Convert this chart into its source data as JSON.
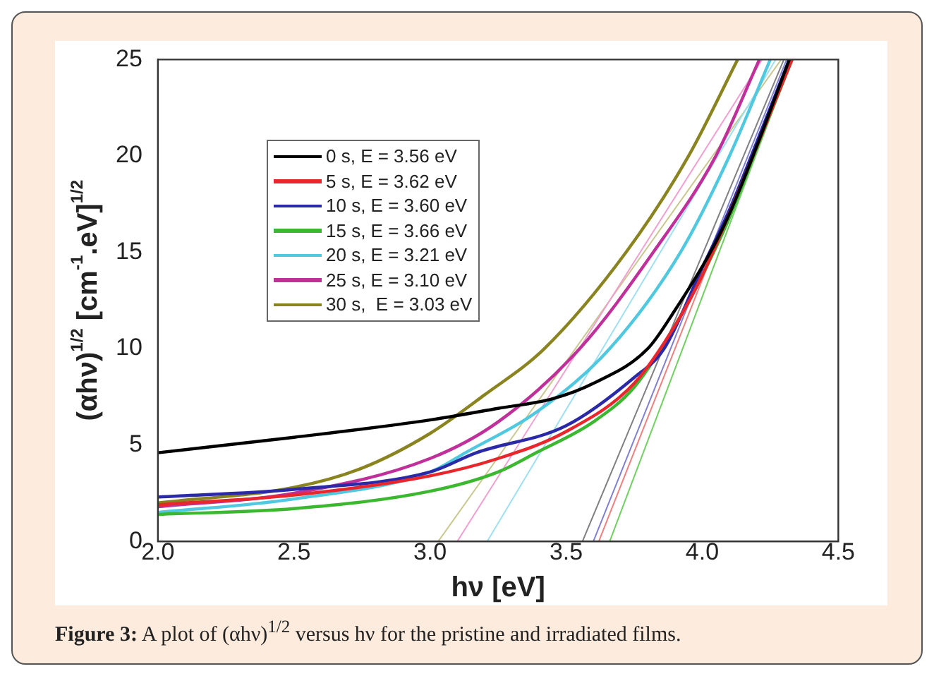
{
  "chart_data": {
    "type": "line",
    "xlabel": "hν [eV]",
    "ylabel": "(αhν)$^{1/2}$ [cm$^{-1}$.eV]$^{1/2}$",
    "xlim": [
      2.0,
      4.5
    ],
    "ylim": [
      0,
      25
    ],
    "xticks": [
      {
        "value": 2,
        "label": "2.0"
      },
      {
        "value": 2.5,
        "label": "2.5"
      },
      {
        "value": 3,
        "label": "3.0"
      },
      {
        "value": 3.5,
        "label": "3.5"
      },
      {
        "value": 4,
        "label": "4.0"
      },
      {
        "value": 4.5,
        "label": "4.5"
      }
    ],
    "yticks": [
      0,
      5,
      10,
      15,
      20,
      25
    ],
    "grid": false,
    "legend": "top left",
    "marker": "none",
    "annotations": [
      "Figure 3: A plot of (αhν)$^{1/2}$ versus hν for the pristine and irradiated films."
    ],
    "series": [
      {
        "name": "0 s, E = 3.56 eV",
        "color": "#000000",
        "x": [
          2.0,
          2.5,
          3.0,
          3.25,
          3.45,
          3.6,
          3.8,
          3.9,
          4.03,
          4.1,
          4.2,
          4.32
        ],
        "values": [
          4.6,
          5.4,
          6.3,
          6.9,
          7.4,
          8.2,
          10,
          12,
          15,
          17,
          20.5,
          25
        ]
      },
      {
        "name": "5 s, E = 3.62 eV",
        "color": "#e8262b",
        "x": [
          2.0,
          2.5,
          3.0,
          3.25,
          3.5,
          3.75,
          3.9,
          4.0,
          4.1,
          4.2,
          4.33
        ],
        "values": [
          1.9,
          2.4,
          3.4,
          4.3,
          5.7,
          8.2,
          11.2,
          13.8,
          null,
          null,
          25
        ]
      },
      {
        "name": "10 s, E = 3.60 eV",
        "color": "#2a2aa8",
        "x": [
          2.0,
          2.5,
          3.0,
          3.17,
          3.5,
          3.75,
          3.86,
          4.0,
          4.1,
          4.2,
          4.32
        ],
        "values": [
          2.3,
          2.7,
          3.6,
          4.6,
          6.0,
          8.5,
          10,
          14.2,
          17.2,
          20.7,
          25
        ]
      },
      {
        "name": "15 s, E = 3.66 eV",
        "color": "#3cb830",
        "x": [
          2.0,
          2.5,
          3.0,
          3.25,
          3.39,
          3.6,
          3.75,
          3.9,
          4.0,
          4.1,
          4.2,
          4.33
        ],
        "values": [
          1.4,
          1.7,
          2.6,
          3.6,
          4.6,
          6.2,
          8.0,
          11.2,
          13.8,
          16.8,
          20.4,
          25
        ]
      },
      {
        "name": "20 s, E = 3.21 eV",
        "color": "#50c8e0",
        "x": [
          2.0,
          2.5,
          3.0,
          3.13,
          3.4,
          3.66,
          3.92,
          4.1,
          4.25
        ],
        "values": [
          1.5,
          2.2,
          3.6,
          4.6,
          6.8,
          10,
          15,
          20,
          25
        ]
      },
      {
        "name": "25 s, E = 3.10 eV",
        "color": "#c0309a",
        "x": [
          2.0,
          2.5,
          3.0,
          3.25,
          3.55,
          3.82,
          4.05,
          4.21
        ],
        "values": [
          1.8,
          2.5,
          4.3,
          6.2,
          10,
          15,
          20,
          25
        ]
      },
      {
        "name": "30 s,  E = 3.03 eV",
        "color": "#8a8420",
        "x": [
          2.0,
          2.5,
          2.75,
          3.0,
          3.2,
          3.42,
          3.72,
          3.95,
          4.13
        ],
        "values": [
          2.0,
          2.8,
          3.8,
          5.6,
          7.6,
          10,
          15,
          20,
          25
        ]
      },
      {
        "color": "#808080",
        "x": [
          3.56,
          4.3
        ],
        "values": [
          0,
          25
        ]
      },
      {
        "color": "#f08080",
        "x": [
          3.62,
          4.32
        ],
        "values": [
          0,
          25
        ]
      },
      {
        "color": "#8080d0",
        "x": [
          3.6,
          4.31
        ],
        "values": [
          0,
          25
        ]
      },
      {
        "color": "#70d060",
        "x": [
          3.66,
          4.33
        ],
        "values": [
          0,
          25
        ]
      },
      {
        "color": "#a0e0f0",
        "x": [
          3.21,
          4.27
        ],
        "values": [
          0,
          25
        ]
      },
      {
        "color": "#f0a0d0",
        "x": [
          3.1,
          4.22
        ],
        "values": [
          0,
          25
        ]
      },
      {
        "color": "#c8c890",
        "x": [
          3.03,
          4.29
        ],
        "values": [
          0,
          25
        ]
      }
    ]
  }
}
